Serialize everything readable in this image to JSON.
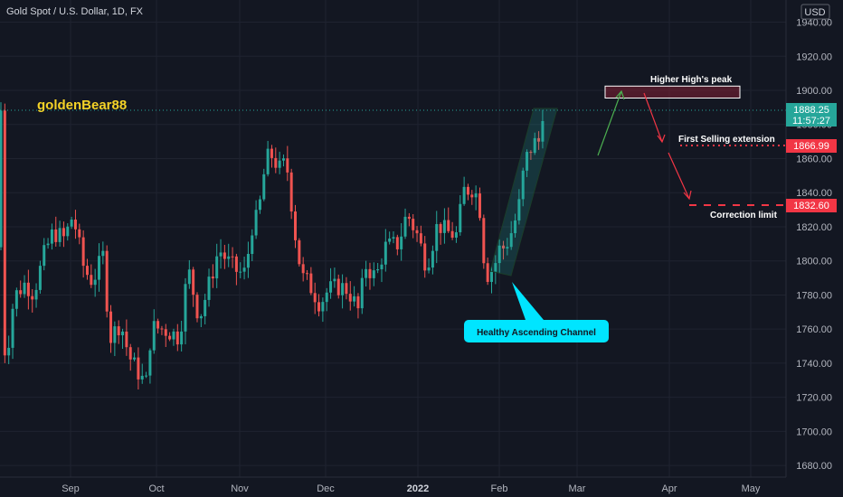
{
  "header": {
    "symbol_title": "Gold Spot / U.S. Dollar, 1D, FX",
    "currency": "USD"
  },
  "watermark": "goldenBear88",
  "price_tag": {
    "price": "1888.25",
    "countdown": "11:57:27",
    "color": "#26a69a"
  },
  "colors": {
    "up": "#26a69a",
    "down": "#ef5350",
    "background": "#131722",
    "grid": "#2a2e39"
  },
  "annotations": {
    "peak_label": "Higher High's peak",
    "selling_label": "First Selling extension",
    "correction_label": "Correction limit",
    "channel_callout": "Healthy Ascending Channel",
    "selling_price": "1866.99",
    "correction_price": "1832.60",
    "peak_zone": [
      1895.5,
      1902.5
    ]
  },
  "chart_data": {
    "type": "candlestick",
    "title": "Gold Spot / U.S. Dollar, 1D, FX",
    "y_unit": "USD",
    "ylim": [
      1672,
      1950
    ],
    "grid": true,
    "y_ticks": [
      "1940.00",
      "1920.00",
      "1900.00",
      "1880.00",
      "1860.00",
      "1840.00",
      "1820.00",
      "1800.00",
      "1780.00",
      "1760.00",
      "1740.00",
      "1720.00",
      "1700.00",
      "1680.00"
    ],
    "x_ticks": [
      "Sep",
      "Oct",
      "Nov",
      "Dec",
      "2022",
      "Feb",
      "Mar",
      "Apr",
      "May"
    ],
    "close_path": [
      [
        "2021-08-09",
        1745
      ],
      [
        "2021-08-11",
        1752
      ],
      [
        "2021-08-13",
        1779
      ],
      [
        "2021-08-17",
        1787
      ],
      [
        "2021-08-20",
        1781
      ],
      [
        "2021-08-24",
        1805
      ],
      [
        "2021-08-27",
        1817
      ],
      [
        "2021-08-31",
        1813
      ],
      [
        "2021-09-03",
        1827
      ],
      [
        "2021-09-07",
        1795
      ],
      [
        "2021-09-10",
        1788
      ],
      [
        "2021-09-14",
        1804
      ],
      [
        "2021-09-16",
        1754
      ],
      [
        "2021-09-20",
        1764
      ],
      [
        "2021-09-23",
        1744
      ],
      [
        "2021-09-29",
        1727
      ],
      [
        "2021-10-01",
        1761
      ],
      [
        "2021-10-05",
        1760
      ],
      [
        "2021-10-08",
        1758
      ],
      [
        "2021-10-11",
        1755
      ],
      [
        "2021-10-14",
        1796
      ],
      [
        "2021-10-18",
        1766
      ],
      [
        "2021-10-21",
        1783
      ],
      [
        "2021-10-25",
        1807
      ],
      [
        "2021-10-28",
        1800
      ],
      [
        "2021-11-01",
        1793
      ],
      [
        "2021-11-04",
        1793
      ],
      [
        "2021-11-05",
        1818
      ],
      [
        "2021-11-08",
        1826
      ],
      [
        "2021-11-10",
        1850
      ],
      [
        "2021-11-12",
        1864
      ],
      [
        "2021-11-16",
        1853
      ],
      [
        "2021-11-18",
        1859
      ],
      [
        "2021-11-22",
        1805
      ],
      [
        "2021-11-24",
        1790
      ],
      [
        "2021-11-26",
        1787
      ],
      [
        "2021-11-30",
        1775
      ],
      [
        "2021-12-03",
        1783
      ],
      [
        "2021-12-07",
        1785
      ],
      [
        "2021-12-10",
        1783
      ],
      [
        "2021-12-14",
        1770
      ],
      [
        "2021-12-16",
        1798
      ],
      [
        "2021-12-20",
        1790
      ],
      [
        "2021-12-23",
        1808
      ],
      [
        "2021-12-28",
        1810
      ],
      [
        "2021-12-31",
        1828
      ],
      [
        "2022-01-04",
        1814
      ],
      [
        "2022-01-07",
        1797
      ],
      [
        "2022-01-11",
        1822
      ],
      [
        "2022-01-14",
        1817
      ],
      [
        "2022-01-18",
        1815
      ],
      [
        "2022-01-20",
        1841
      ],
      [
        "2022-01-24",
        1843
      ],
      [
        "2022-01-26",
        1830
      ],
      [
        "2022-01-28",
        1791
      ],
      [
        "2022-01-31",
        1796
      ],
      [
        "2022-02-02",
        1807
      ],
      [
        "2022-02-04",
        1808
      ],
      [
        "2022-02-07",
        1820
      ],
      [
        "2022-02-09",
        1833
      ],
      [
        "2022-02-11",
        1858
      ],
      [
        "2022-02-14",
        1869
      ],
      [
        "2022-02-16",
        1870
      ],
      [
        "2022-02-18",
        1896
      ],
      [
        "2022-02-21",
        1888.25
      ]
    ],
    "projection": {
      "path": [
        [
          "2022-02-21",
          1860
        ],
        [
          "2022-03-02",
          1900
        ],
        [
          "2022-03-09",
          1898
        ],
        [
          "2022-03-16",
          1866.99
        ],
        [
          "2022-03-23",
          1860
        ],
        [
          "2022-04-01",
          1832.6
        ]
      ],
      "levels": [
        {
          "label": "Higher High's peak",
          "value": 1900
        },
        {
          "label": "First Selling extension",
          "value": 1866.99
        },
        {
          "label": "Correction limit",
          "value": 1832.6
        }
      ]
    },
    "channel": {
      "name": "Healthy Ascending Channel",
      "start": [
        "2022-01-28",
        1791
      ],
      "end": [
        "2022-02-21",
        1888
      ]
    }
  }
}
